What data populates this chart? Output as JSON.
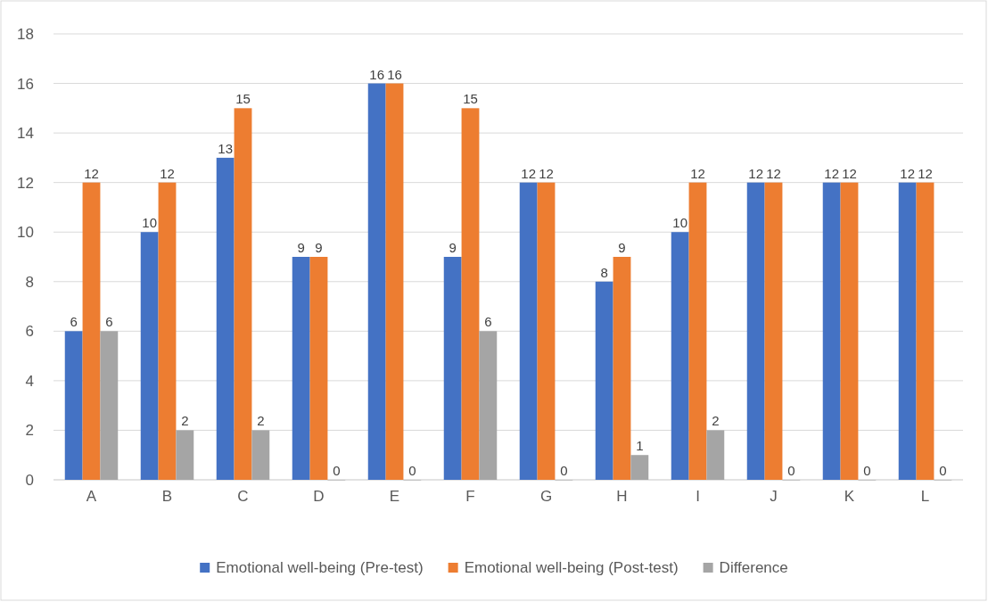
{
  "chart_data": {
    "type": "bar",
    "categories": [
      "A",
      "B",
      "C",
      "D",
      "E",
      "F",
      "G",
      "H",
      "I",
      "J",
      "K",
      "L"
    ],
    "series": [
      {
        "name": "Emotional well-being (Pre-test)",
        "color": "#4472c4",
        "values": [
          6,
          10,
          13,
          9,
          16,
          9,
          12,
          8,
          10,
          12,
          12,
          12
        ]
      },
      {
        "name": "Emotional well-being (Post-test)",
        "color": "#ed7d31",
        "values": [
          12,
          12,
          15,
          9,
          16,
          15,
          12,
          9,
          12,
          12,
          12,
          12
        ]
      },
      {
        "name": "Difference",
        "color": "#a5a5a5",
        "values": [
          6,
          2,
          2,
          0,
          0,
          6,
          0,
          1,
          2,
          0,
          0,
          0
        ]
      }
    ],
    "ylim": [
      0,
      18
    ],
    "yticks": [
      0,
      2,
      4,
      6,
      8,
      10,
      12,
      14,
      16,
      18
    ],
    "grid": "y",
    "legend": "bottom",
    "data_labels": true
  }
}
